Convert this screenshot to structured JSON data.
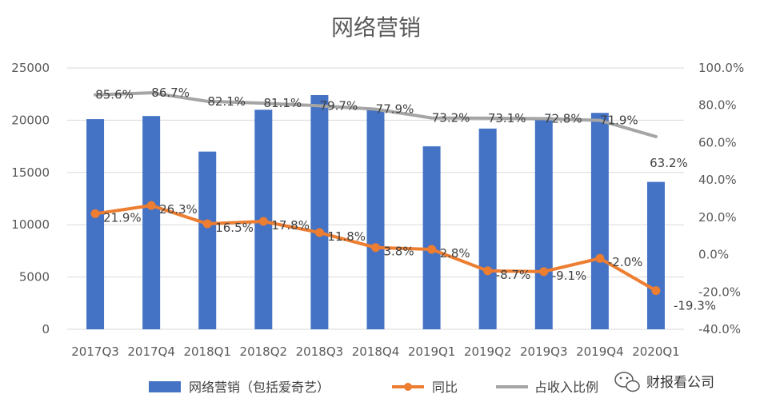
{
  "chart_data": {
    "type": "bar+line",
    "title": "网络营销",
    "categories": [
      "2017Q3",
      "2017Q4",
      "2018Q1",
      "2018Q2",
      "2018Q3",
      "2018Q4",
      "2019Q1",
      "2019Q2",
      "2019Q3",
      "2019Q4",
      "2020Q1"
    ],
    "left_axis": {
      "min": 0,
      "max": 25000,
      "step": 5000,
      "ticks": [
        "0",
        "5000",
        "10000",
        "15000",
        "20000",
        "25000"
      ]
    },
    "right_axis": {
      "min": -40,
      "max": 100,
      "step": 20,
      "ticks": [
        "-40.0%",
        "-20.0%",
        "0.0%",
        "20.0%",
        "40.0%",
        "60.0%",
        "80.0%",
        "100.0%"
      ]
    },
    "series": [
      {
        "name": "网络营销（包括爱奇艺）",
        "type": "bar",
        "axis": "left",
        "color": "#4472C4",
        "values": [
          20100,
          20400,
          17000,
          21000,
          22400,
          21000,
          17500,
          19200,
          20300,
          20700,
          14100
        ]
      },
      {
        "name": "同比",
        "type": "line",
        "axis": "right",
        "color": "#ED7D31",
        "values": [
          21.9,
          26.3,
          16.5,
          17.8,
          11.8,
          3.8,
          2.8,
          -8.7,
          -9.1,
          -2.0,
          -19.3
        ],
        "labels": [
          "21.9%",
          "26.3%",
          "16.5%",
          "17.8%",
          "11.8%",
          "3.8%",
          "2.8%",
          "-8.7%",
          "-9.1%",
          "-2.0%",
          "-19.3%"
        ]
      },
      {
        "name": "占收入比例",
        "type": "line",
        "axis": "right",
        "color": "#A5A5A5",
        "values": [
          85.6,
          86.7,
          82.1,
          81.1,
          79.7,
          77.9,
          73.2,
          73.1,
          72.8,
          71.9,
          63.2
        ],
        "labels": [
          "85.6%",
          "86.7%",
          "82.1%",
          "81.1%",
          "79.7%",
          "77.9%",
          "73.2%",
          "73.1%",
          "72.8%",
          "71.9%",
          "63.2%"
        ]
      }
    ],
    "legend": {
      "position": "bottom"
    }
  },
  "watermark": {
    "text": "财报看公司",
    "icon": "wechat-icon"
  }
}
